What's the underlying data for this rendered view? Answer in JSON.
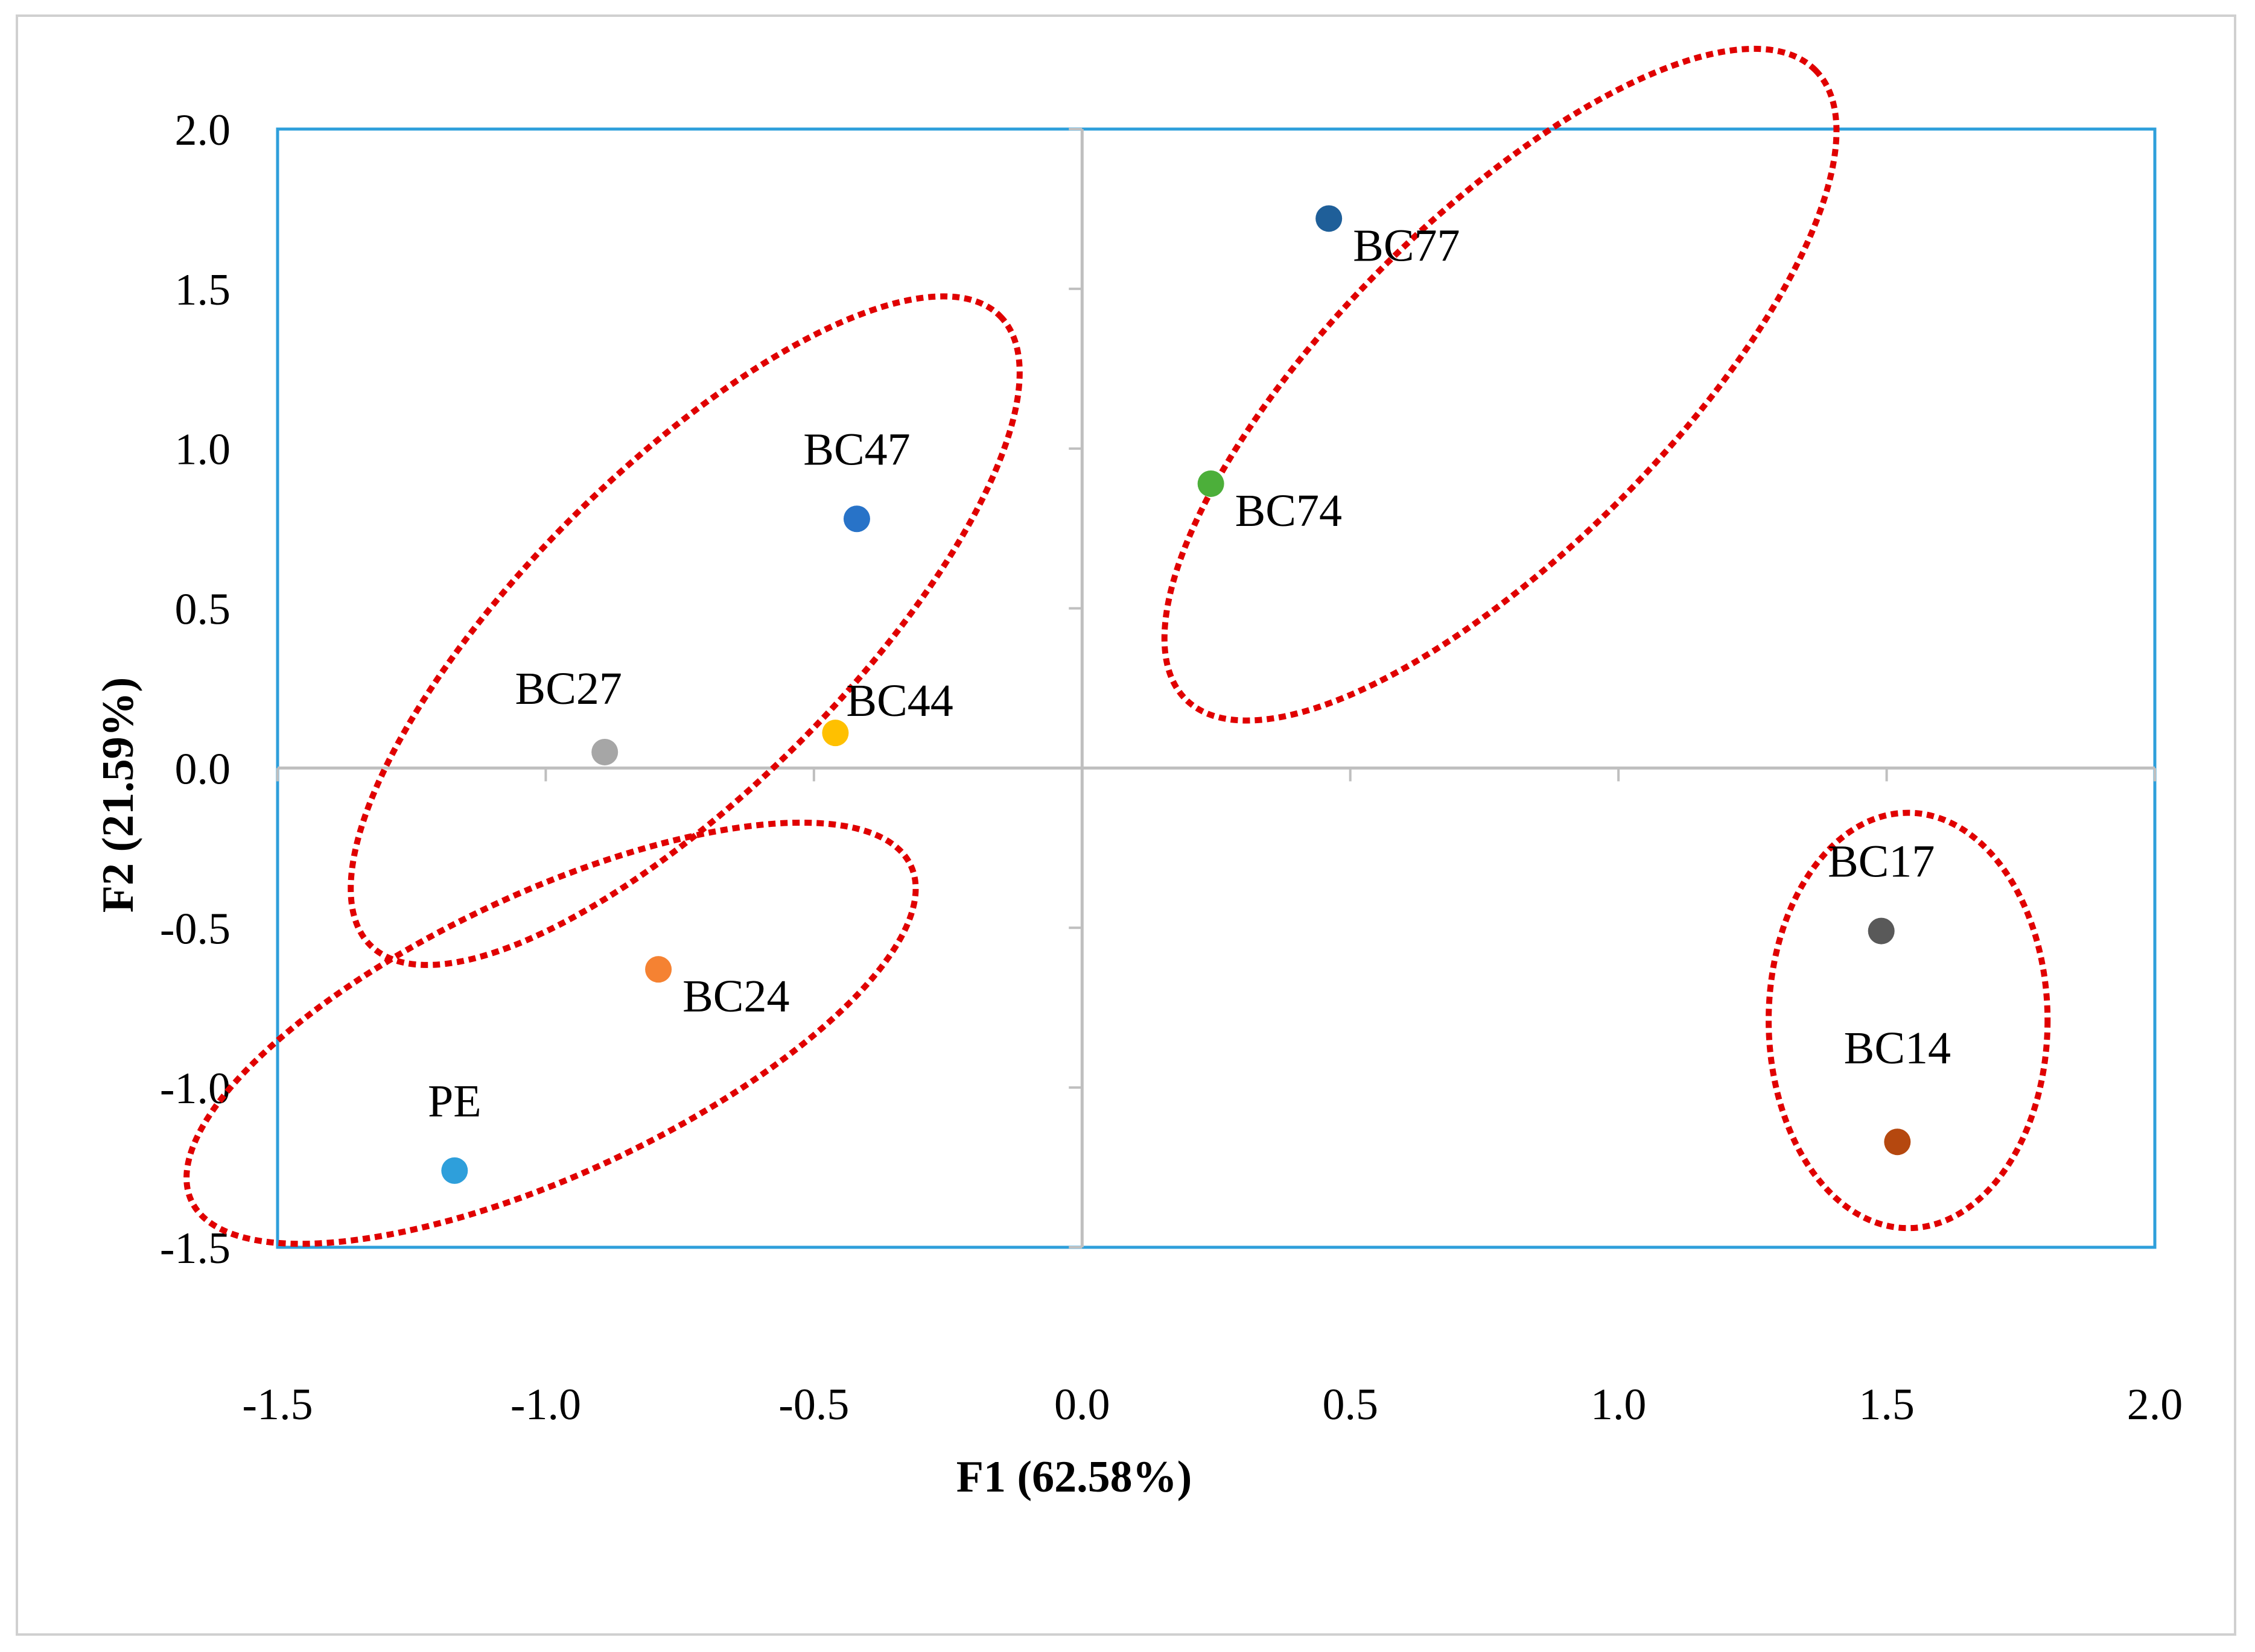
{
  "chart_data": {
    "type": "scatter",
    "title": "",
    "xlabel": "F1 (62.58%)",
    "ylabel": "F2 (21.59%)",
    "xlim": [
      -1.5,
      2.0
    ],
    "ylim": [
      -1.5,
      2.0
    ],
    "x_ticks": [
      "-1.5",
      "-1.0",
      "-0.5",
      "0.0",
      "0.5",
      "1.0",
      "1.5",
      "2.0"
    ],
    "y_ticks": [
      "-1.5",
      "-1.0",
      "-0.5",
      "0.0",
      "0.5",
      "1.0",
      "1.5",
      "2.0"
    ],
    "grid": false,
    "legend": "none",
    "points": [
      {
        "label": "BC77",
        "x": 0.46,
        "y": 1.72,
        "color": "#1F5F99",
        "label_pos": "right-below"
      },
      {
        "label": "BC74",
        "x": 0.24,
        "y": 0.89,
        "color": "#4CAF3A",
        "label_pos": "right-below"
      },
      {
        "label": "BC47",
        "x": -0.42,
        "y": 0.78,
        "color": "#2873C8",
        "label_pos": "above"
      },
      {
        "label": "BC27",
        "x": -0.89,
        "y": 0.05,
        "color": "#A6A6A6",
        "label_pos": "above-left"
      },
      {
        "label": "BC44",
        "x": -0.46,
        "y": 0.11,
        "color": "#FFC000",
        "label_pos": "right-above"
      },
      {
        "label": "BC24",
        "x": -0.79,
        "y": -0.63,
        "color": "#F58232",
        "label_pos": "right-below"
      },
      {
        "label": "PE",
        "x": -1.17,
        "y": -1.26,
        "color": "#2E9FDB",
        "label_pos": "above"
      },
      {
        "label": "BC17",
        "x": 1.49,
        "y": -0.51,
        "color": "#595959",
        "label_pos": "above"
      },
      {
        "label": "BC14",
        "x": 1.52,
        "y": -1.17,
        "color": "#B5480F",
        "label_pos": "above-far"
      }
    ],
    "clusters": [
      {
        "members": [
          "BC77",
          "BC74"
        ],
        "cx": 0.78,
        "cy": 1.2,
        "rx": 0.83,
        "ry": 0.52,
        "angle_deg": -45
      },
      {
        "members": [
          "BC47",
          "BC27",
          "BC44"
        ],
        "cx": -0.74,
        "cy": 0.43,
        "rx": 0.83,
        "ry": 0.5,
        "angle_deg": -45
      },
      {
        "members": [
          "BC24",
          "PE"
        ],
        "cx": -0.99,
        "cy": -0.83,
        "rx": 0.74,
        "ry": 0.44,
        "angle_deg": -25
      },
      {
        "members": [
          "BC17",
          "BC14"
        ],
        "cx": 1.54,
        "cy": -0.79,
        "rx": 0.26,
        "ry": 0.65,
        "angle_deg": 0
      }
    ],
    "colors": {
      "plot_border": "#2E9FDB",
      "zero_lines": "#BFBFBF",
      "cluster_outline": "#E00000"
    }
  }
}
